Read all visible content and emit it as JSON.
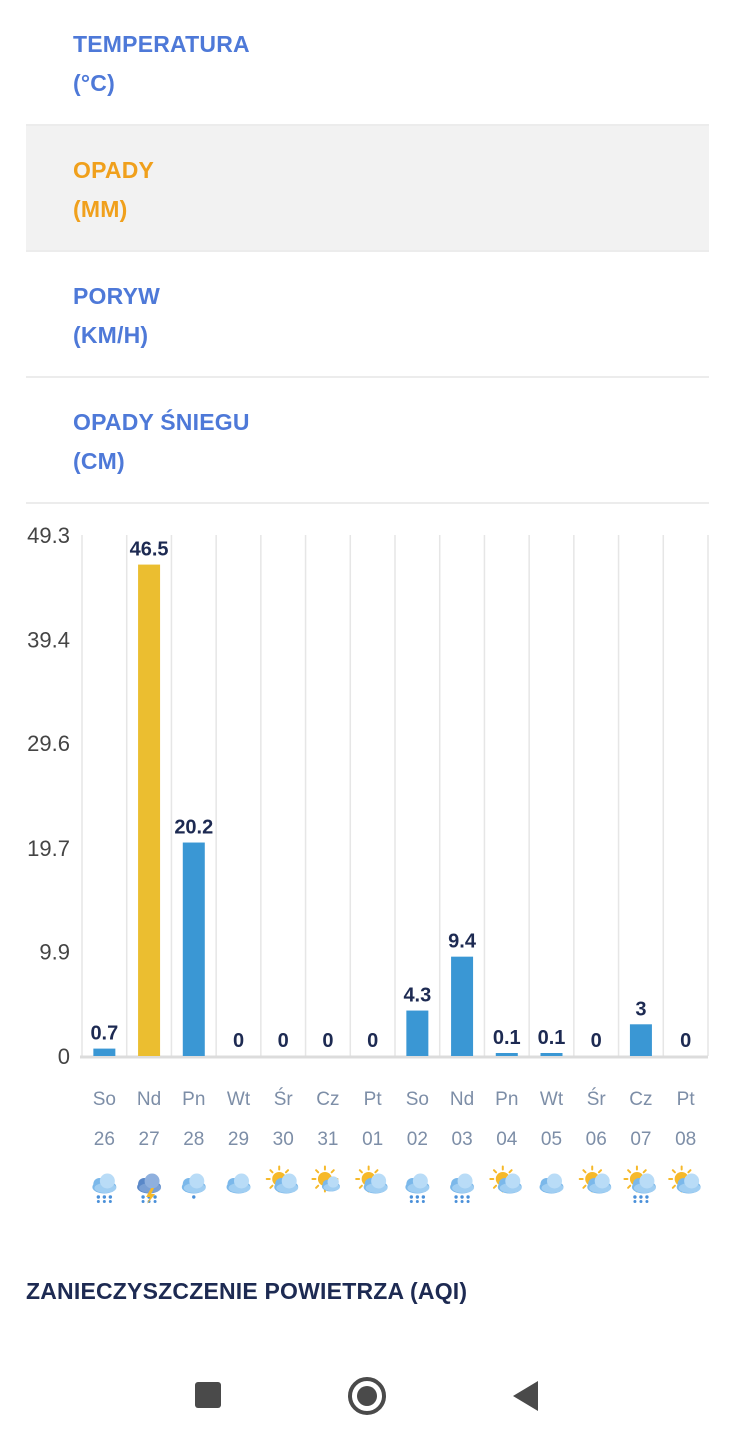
{
  "tabs": [
    {
      "line1": "TEMPERATURA",
      "line2": "(°C)"
    },
    {
      "line1": "OPADY",
      "line2": "(MM)"
    },
    {
      "line1": "PORYW",
      "line2": "(KM/H)"
    },
    {
      "line1": "OPADY ŚNIEGU",
      "line2": "(CM)"
    }
  ],
  "chart_data": {
    "type": "bar",
    "title": "",
    "xlabel": "",
    "ylabel": "",
    "ylim": [
      0,
      49.3
    ],
    "y_ticks": [
      "49.3",
      "39.4",
      "29.6",
      "19.7",
      "9.9",
      "0"
    ],
    "grid": "vertical",
    "days": [
      {
        "day": "So",
        "date": "26",
        "value": 0.7,
        "label": "0.7",
        "icon": "rain-cloud-icon"
      },
      {
        "day": "Nd",
        "date": "27",
        "value": 46.5,
        "label": "46.5",
        "icon": "thunderstorm-icon",
        "highlight": true
      },
      {
        "day": "Pn",
        "date": "28",
        "value": 20.2,
        "label": "20.2",
        "icon": "light-rain-icon"
      },
      {
        "day": "Wt",
        "date": "29",
        "value": 0,
        "label": "0",
        "icon": "cloudy-icon"
      },
      {
        "day": "Śr",
        "date": "30",
        "value": 0,
        "label": "0",
        "icon": "partly-sunny-icon"
      },
      {
        "day": "Cz",
        "date": "31",
        "value": 0,
        "label": "0",
        "icon": "mostly-sunny-icon"
      },
      {
        "day": "Pt",
        "date": "01",
        "value": 0,
        "label": "0",
        "icon": "partly-sunny-icon"
      },
      {
        "day": "So",
        "date": "02",
        "value": 4.3,
        "label": "4.3",
        "icon": "rain-cloud-icon"
      },
      {
        "day": "Nd",
        "date": "03",
        "value": 9.4,
        "label": "9.4",
        "icon": "rain-cloud-icon"
      },
      {
        "day": "Pn",
        "date": "04",
        "value": 0.1,
        "label": "0.1",
        "icon": "partly-cloudy-icon"
      },
      {
        "day": "Wt",
        "date": "05",
        "value": 0.1,
        "label": "0.1",
        "icon": "cloudy-icon"
      },
      {
        "day": "Śr",
        "date": "06",
        "value": 0,
        "label": "0",
        "icon": "partly-cloudy-icon"
      },
      {
        "day": "Cz",
        "date": "07",
        "value": 3,
        "label": "3",
        "icon": "sun-rain-icon"
      },
      {
        "day": "Pt",
        "date": "08",
        "value": 0,
        "label": "0",
        "icon": "partly-cloudy-icon"
      }
    ]
  },
  "colors": {
    "tab_text": "#4e79d8",
    "tab_active_text": "#f0a01c",
    "bar": "#3a97d4",
    "bar_highlight": "#ebbe30",
    "value_label": "#1d2a52",
    "axis_label": "#444444",
    "day_label": "#7d8ea7"
  },
  "aqi_title": "ZANIECZYSZCZENIE POWIETRZA (AQI)",
  "navbar": {
    "recents": "square-icon",
    "home": "home-circle-icon",
    "back": "back-triangle-icon"
  }
}
